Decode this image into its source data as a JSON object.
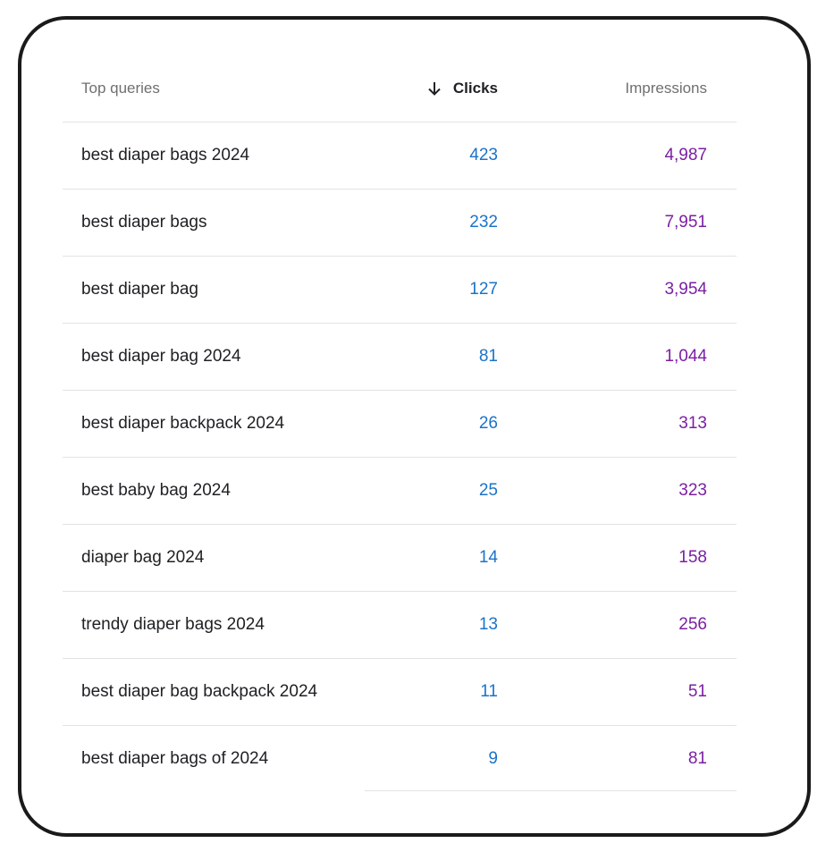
{
  "header": {
    "query_label": "Top queries",
    "clicks_label": "Clicks",
    "impressions_label": "Impressions",
    "sort_icon": "arrow-down-icon"
  },
  "rows": [
    {
      "query": "best diaper bags 2024",
      "clicks": "423",
      "impressions": "4,987"
    },
    {
      "query": "best diaper bags",
      "clicks": "232",
      "impressions": "7,951"
    },
    {
      "query": "best diaper bag",
      "clicks": "127",
      "impressions": "3,954"
    },
    {
      "query": "best diaper bag 2024",
      "clicks": "81",
      "impressions": "1,044"
    },
    {
      "query": "best diaper backpack 2024",
      "clicks": "26",
      "impressions": "313"
    },
    {
      "query": "best baby bag 2024",
      "clicks": "25",
      "impressions": "323"
    },
    {
      "query": "diaper bag 2024",
      "clicks": "14",
      "impressions": "158"
    },
    {
      "query": "trendy diaper bags 2024",
      "clicks": "13",
      "impressions": "256"
    },
    {
      "query": "best diaper bag backpack 2024",
      "clicks": "11",
      "impressions": "51"
    },
    {
      "query": "best diaper bags of 2024",
      "clicks": "9",
      "impressions": "81"
    }
  ],
  "colors": {
    "clicks": "#1a73c8",
    "impressions": "#7b1fa2",
    "frame": "#1a1a1a"
  }
}
